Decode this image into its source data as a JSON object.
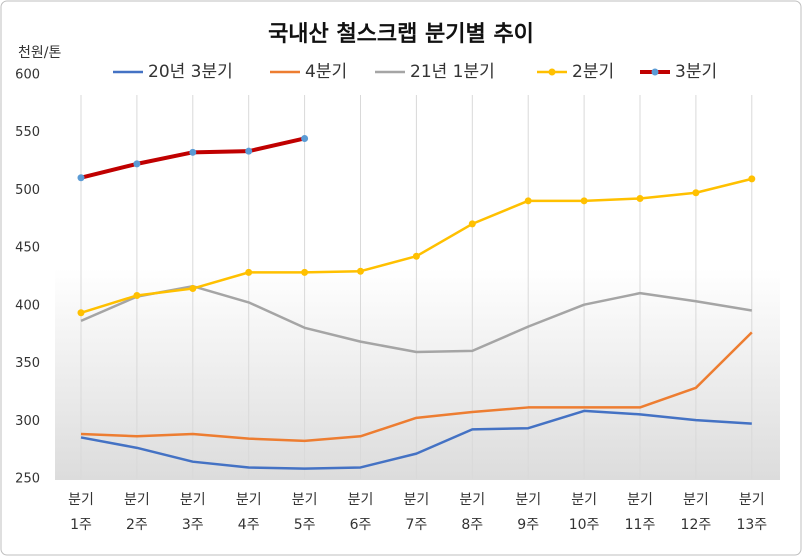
{
  "chart_data": {
    "type": "line",
    "title": "국내산 철스크랩 분기별 추이",
    "y_label": "천원/톤",
    "categories": [
      [
        "분기",
        "1주"
      ],
      [
        "분기",
        "2주"
      ],
      [
        "분기",
        "3주"
      ],
      [
        "분기",
        "4주"
      ],
      [
        "분기",
        "5주"
      ],
      [
        "분기",
        "6주"
      ],
      [
        "분기",
        "7주"
      ],
      [
        "분기",
        "8주"
      ],
      [
        "분기",
        "9주"
      ],
      [
        "분기",
        "10주"
      ],
      [
        "분기",
        "11주"
      ],
      [
        "분기",
        "12주"
      ],
      [
        "분기",
        "13주"
      ]
    ],
    "series": [
      {
        "name": "20년 3분기",
        "color": "#4472c4",
        "width": 2.5,
        "values": [
          286,
          277,
          265,
          260,
          259,
          260,
          272,
          293,
          294,
          309,
          306,
          301,
          298
        ]
      },
      {
        "name": "4분기",
        "color": "#ed7d31",
        "width": 2.5,
        "values": [
          289,
          287,
          289,
          285,
          283,
          287,
          303,
          308,
          312,
          312,
          312,
          329,
          377
        ]
      },
      {
        "name": "21년 1분기",
        "color": "#a5a5a5",
        "width": 2.5,
        "values": [
          387,
          408,
          417,
          403,
          381,
          369,
          360,
          361,
          382,
          401,
          411,
          404,
          396
        ]
      },
      {
        "name": "2분기",
        "color": "#ffc000",
        "width": 2.5,
        "marker_color": "#ffc000",
        "values": [
          394,
          409,
          415,
          429,
          429,
          430,
          443,
          471,
          491,
          491,
          493,
          498,
          510
        ]
      },
      {
        "name": "3분기",
        "color": "#c00000",
        "width": 4,
        "marker_color": "#5b9bd5",
        "values": [
          511,
          523,
          533,
          534,
          545,
          null,
          null,
          null,
          null,
          null,
          null,
          null,
          null
        ]
      }
    ],
    "ylim": [
      250,
      600
    ],
    "yticks": [
      250,
      300,
      350,
      400,
      450,
      500,
      550,
      600
    ],
    "grid": true,
    "legend": "top"
  }
}
